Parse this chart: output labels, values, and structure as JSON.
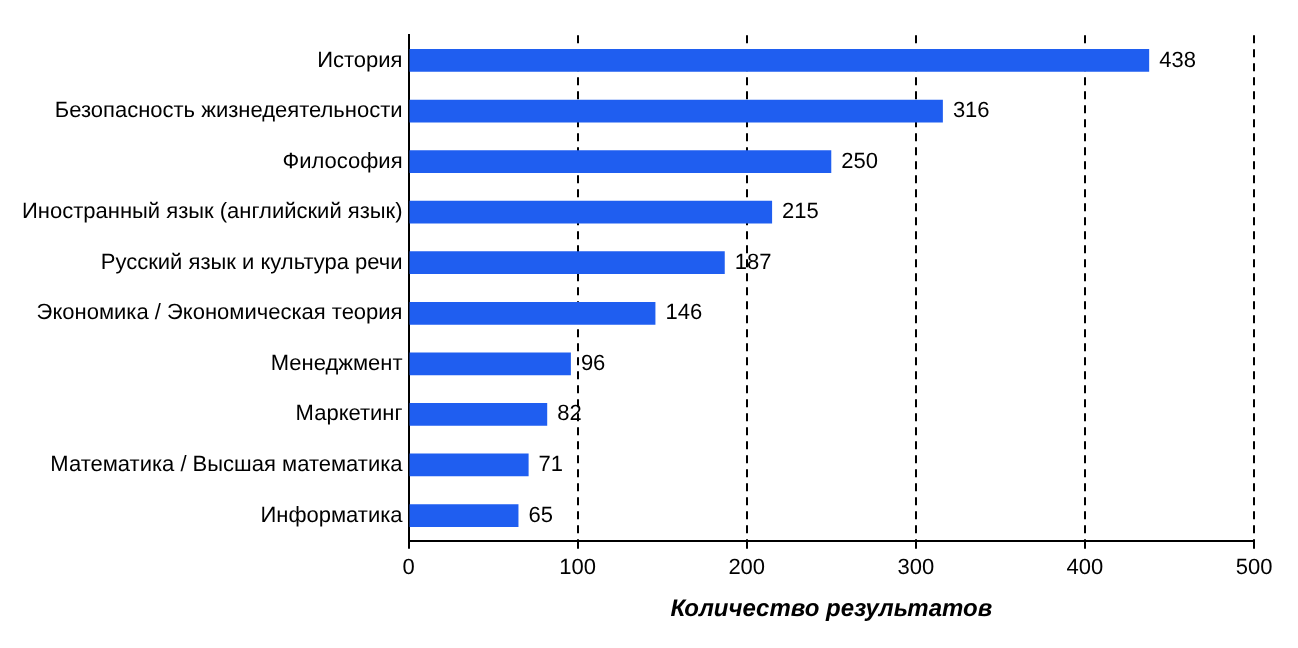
{
  "chart_data": {
    "type": "bar",
    "orientation": "horizontal",
    "xlabel": "Количество результатов",
    "categories": [
      "История",
      "Безопасность жизнедеятельности",
      "Философия",
      "Иностранный язык (английский язык)",
      "Русский язык и культура речи",
      "Экономика / Экономическая теория",
      "Менеджмент",
      "Маркетинг",
      "Математика / Высшая математика",
      "Информатика"
    ],
    "values": [
      438,
      316,
      250,
      215,
      187,
      146,
      96,
      82,
      71,
      65
    ],
    "color": "#1f5ef0",
    "xlim": [
      0,
      500
    ],
    "xticks": [
      0,
      100,
      200,
      300,
      400,
      500
    ],
    "grid": "x",
    "line_style": "dashed",
    "legend": false,
    "data_labels": true
  }
}
